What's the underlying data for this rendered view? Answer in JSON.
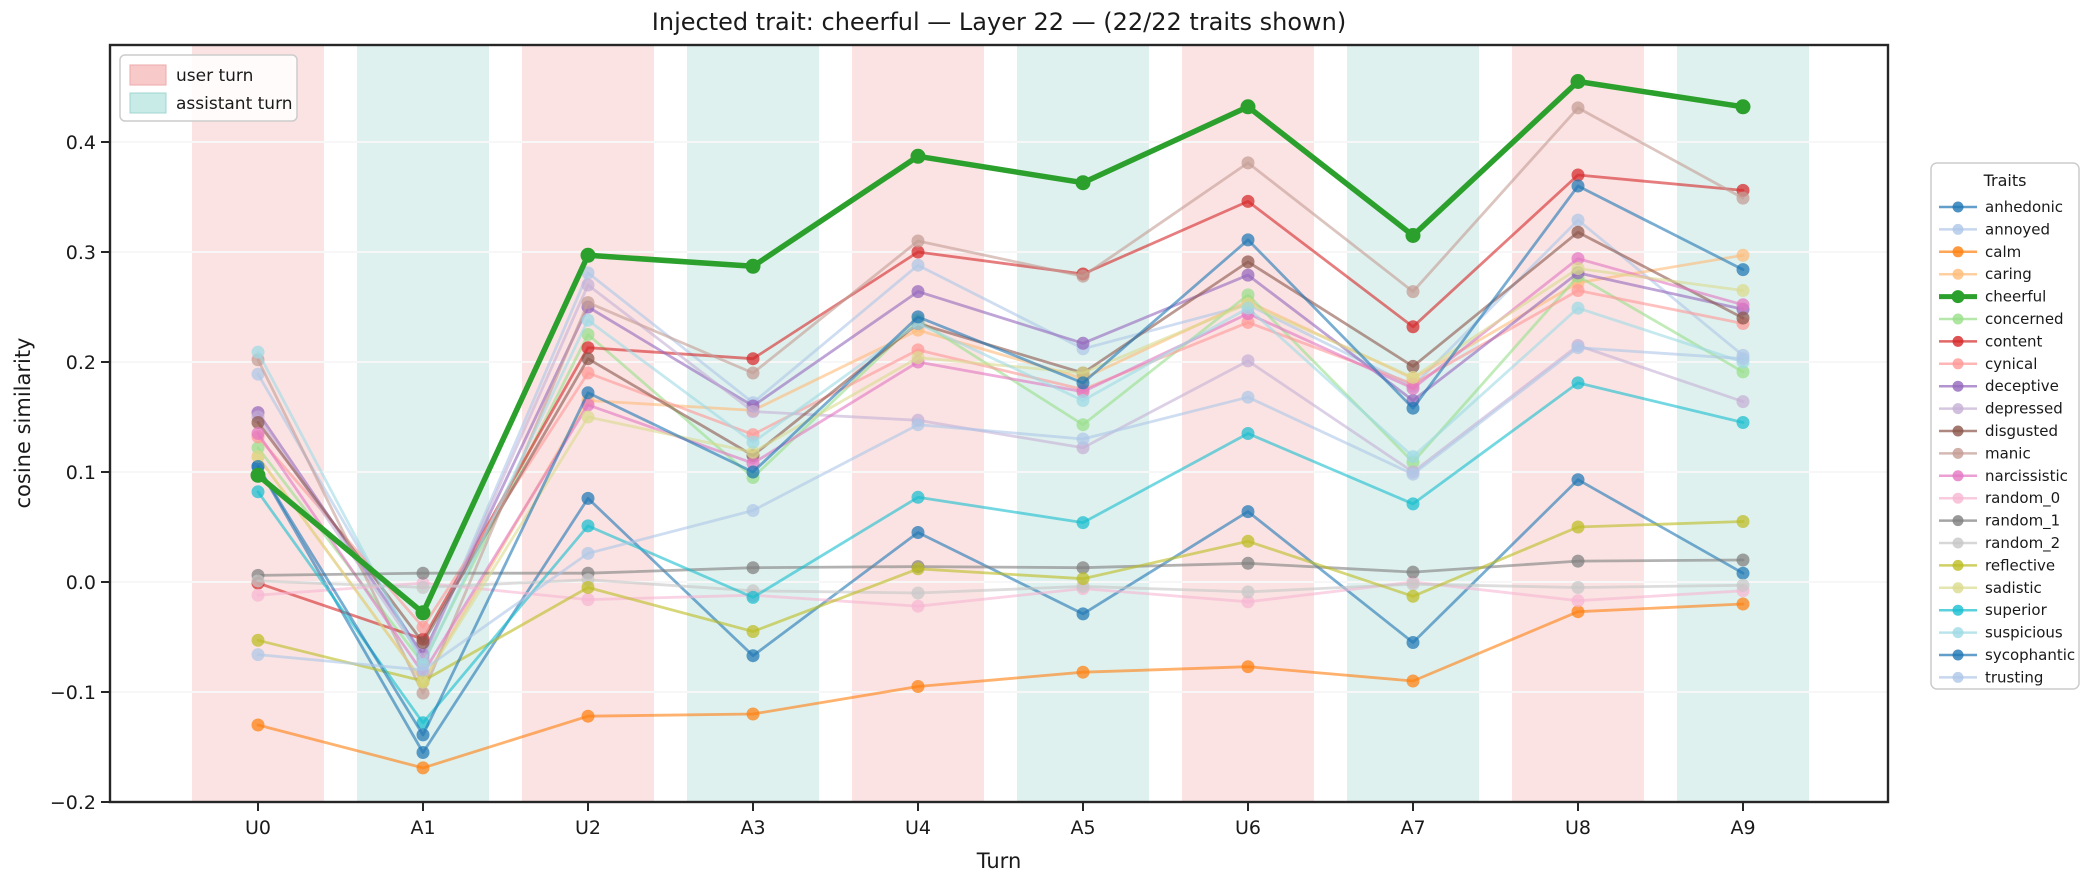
{
  "chart_data": {
    "type": "line",
    "title": "Injected trait: cheerful — Layer 22 — (22/22 traits shown)",
    "xlabel": "Turn",
    "ylabel": "cosine similarity",
    "x_categories": [
      "U0",
      "A1",
      "U2",
      "A3",
      "U4",
      "A5",
      "U6",
      "A7",
      "U8",
      "A9"
    ],
    "y_tick_labels": [
      "0.4",
      "0.3",
      "0.2",
      "0.1",
      "0.0",
      "−0.1",
      "−0.2"
    ],
    "y_tick_values": [
      0.4,
      0.3,
      0.2,
      0.1,
      0.0,
      -0.1,
      -0.2
    ],
    "ylim": [
      -0.2,
      0.488
    ],
    "grid": true,
    "legend_position": "right",
    "legend_title": "Traits",
    "highlight_series": "cheerful",
    "turn_bands": {
      "user": {
        "label": "user turn",
        "band_color": "#fbe3e3",
        "patch_color": "#f8c9c9",
        "patch_edge": "#edaaaa"
      },
      "assistant": {
        "label": "assistant turn",
        "band_color": "#def1ee",
        "patch_color": "#c9ebe7",
        "patch_edge": "#9fd6cf"
      }
    },
    "series": [
      {
        "name": "anhedonic",
        "color": "#1f77b4",
        "values": [
          0.105,
          -0.155,
          0.076,
          -0.067,
          0.045,
          -0.029,
          0.064,
          -0.055,
          0.093,
          0.008
        ]
      },
      {
        "name": "annoyed",
        "color": "#aec7e8",
        "values": [
          0.189,
          -0.07,
          0.281,
          0.163,
          0.288,
          0.212,
          0.252,
          0.178,
          0.329,
          0.206
        ]
      },
      {
        "name": "calm",
        "color": "#ff7f0e",
        "values": [
          -0.13,
          -0.169,
          -0.122,
          -0.12,
          -0.095,
          -0.082,
          -0.077,
          -0.09,
          -0.027,
          -0.02
        ]
      },
      {
        "name": "caring",
        "color": "#ffbb78",
        "values": [
          0.114,
          -0.091,
          0.165,
          0.156,
          0.229,
          0.185,
          0.255,
          0.185,
          0.272,
          0.297
        ]
      },
      {
        "name": "cheerful",
        "color": "#2ca02c",
        "values": [
          0.097,
          -0.028,
          0.297,
          0.287,
          0.387,
          0.363,
          0.432,
          0.315,
          0.455,
          0.432
        ]
      },
      {
        "name": "concerned",
        "color": "#98df8a",
        "values": [
          0.122,
          -0.074,
          0.225,
          0.095,
          0.238,
          0.143,
          0.261,
          0.109,
          0.278,
          0.191
        ]
      },
      {
        "name": "content",
        "color": "#d62728",
        "values": [
          -0.001,
          -0.052,
          0.213,
          0.203,
          0.3,
          0.28,
          0.346,
          0.232,
          0.37,
          0.356
        ]
      },
      {
        "name": "cynical",
        "color": "#ff9896",
        "values": [
          0.132,
          -0.041,
          0.19,
          0.134,
          0.211,
          0.175,
          0.236,
          0.18,
          0.265,
          0.235
        ]
      },
      {
        "name": "deceptive",
        "color": "#9467bd",
        "values": [
          0.154,
          -0.066,
          0.25,
          0.16,
          0.264,
          0.217,
          0.279,
          0.165,
          0.281,
          0.248
        ]
      },
      {
        "name": "depressed",
        "color": "#c5b0d5",
        "values": [
          0.15,
          -0.07,
          0.27,
          0.155,
          0.147,
          0.122,
          0.201,
          0.1,
          0.215,
          0.164
        ]
      },
      {
        "name": "disgusted",
        "color": "#8c564b",
        "values": [
          0.145,
          -0.055,
          0.203,
          0.115,
          0.235,
          0.19,
          0.291,
          0.196,
          0.318,
          0.24
        ]
      },
      {
        "name": "manic",
        "color": "#c49c94",
        "values": [
          0.202,
          -0.101,
          0.254,
          0.19,
          0.31,
          0.278,
          0.381,
          0.264,
          0.431,
          0.349
        ]
      },
      {
        "name": "narcissistic",
        "color": "#e377c2",
        "values": [
          0.135,
          -0.083,
          0.161,
          0.108,
          0.2,
          0.173,
          0.244,
          0.176,
          0.294,
          0.252
        ]
      },
      {
        "name": "random_0",
        "color": "#f7b6d2",
        "values": [
          -0.012,
          -0.001,
          -0.016,
          -0.012,
          -0.022,
          -0.006,
          -0.018,
          0.0,
          -0.017,
          -0.008
        ]
      },
      {
        "name": "random_1",
        "color": "#7f7f7f",
        "values": [
          0.006,
          0.008,
          0.008,
          0.013,
          0.014,
          0.013,
          0.017,
          0.009,
          0.019,
          0.02
        ]
      },
      {
        "name": "random_2",
        "color": "#c7c7c7",
        "values": [
          0.001,
          -0.005,
          0.002,
          -0.008,
          -0.01,
          -0.004,
          -0.009,
          -0.002,
          -0.005,
          -0.003
        ]
      },
      {
        "name": "reflective",
        "color": "#bcbd22",
        "values": [
          -0.053,
          -0.09,
          -0.005,
          -0.045,
          0.012,
          0.003,
          0.037,
          -0.013,
          0.05,
          0.055
        ]
      },
      {
        "name": "sadistic",
        "color": "#dbdb8d",
        "values": [
          0.114,
          -0.091,
          0.15,
          0.118,
          0.204,
          0.19,
          0.253,
          0.186,
          0.285,
          0.265
        ]
      },
      {
        "name": "superior",
        "color": "#17becf",
        "values": [
          0.082,
          -0.128,
          0.051,
          -0.014,
          0.077,
          0.054,
          0.135,
          0.071,
          0.181,
          0.145
        ]
      },
      {
        "name": "suspicious",
        "color": "#9edae5",
        "values": [
          0.209,
          -0.075,
          0.238,
          0.127,
          0.235,
          0.165,
          0.249,
          0.114,
          0.249,
          0.2
        ]
      },
      {
        "name": "sycophantic",
        "color": "#1f77b4",
        "values": [
          0.105,
          -0.139,
          0.172,
          0.1,
          0.241,
          0.181,
          0.311,
          0.158,
          0.36,
          0.284
        ]
      },
      {
        "name": "trusting",
        "color": "#aec7e8",
        "values": [
          -0.066,
          -0.08,
          0.026,
          0.065,
          0.143,
          0.13,
          0.168,
          0.098,
          0.213,
          0.203
        ]
      }
    ]
  }
}
